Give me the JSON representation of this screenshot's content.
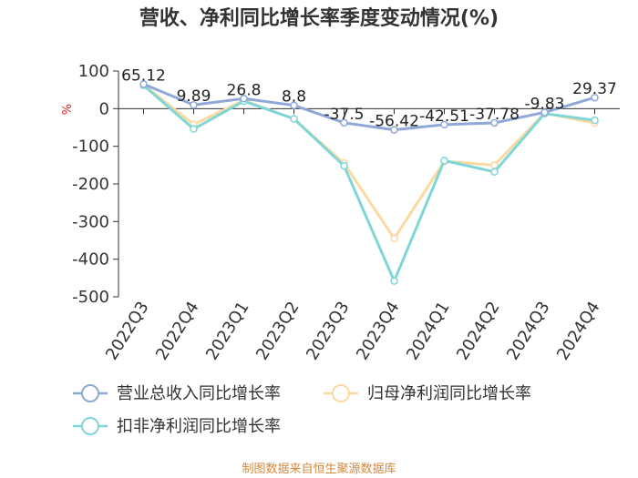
{
  "chart_data": {
    "type": "line",
    "title": "营收、净利同比增长率季度变动情况(%)",
    "ylabel": "%",
    "categories": [
      "2022Q3",
      "2022Q4",
      "2023Q1",
      "2023Q2",
      "2023Q3",
      "2023Q4",
      "2024Q1",
      "2024Q2",
      "2024Q3",
      "2024Q4"
    ],
    "ylim": [
      -500,
      100
    ],
    "yticks": [
      100,
      0,
      -100,
      -200,
      -300,
      -400,
      -500
    ],
    "grid": false,
    "legend_position": "bottom",
    "series": [
      {
        "name": "营业总收入同比增长率",
        "color": "#8fa8d8",
        "values": [
          65.12,
          9.89,
          26.8,
          8.8,
          -37.5,
          -56.42,
          -42.51,
          -37.78,
          -9.83,
          29.37
        ],
        "labels": [
          "65.12",
          "9.89",
          "26.8",
          "8.8",
          "-37.5",
          "-56.42",
          "-42.51",
          "-37.78",
          "-9.83",
          "29.37"
        ]
      },
      {
        "name": "归母净利润同比增长率",
        "color": "#fcd9a0",
        "values": [
          64,
          -42,
          22,
          -27,
          -145,
          -345,
          -140,
          -150,
          -12,
          -38
        ]
      },
      {
        "name": "扣非净利润同比增长率",
        "color": "#7fd6d8",
        "values": [
          62,
          -54,
          20,
          -27,
          -152,
          -458,
          -138,
          -168,
          -13,
          -31
        ]
      }
    ]
  },
  "source_text": "制图数据来自恒生聚源数据库"
}
